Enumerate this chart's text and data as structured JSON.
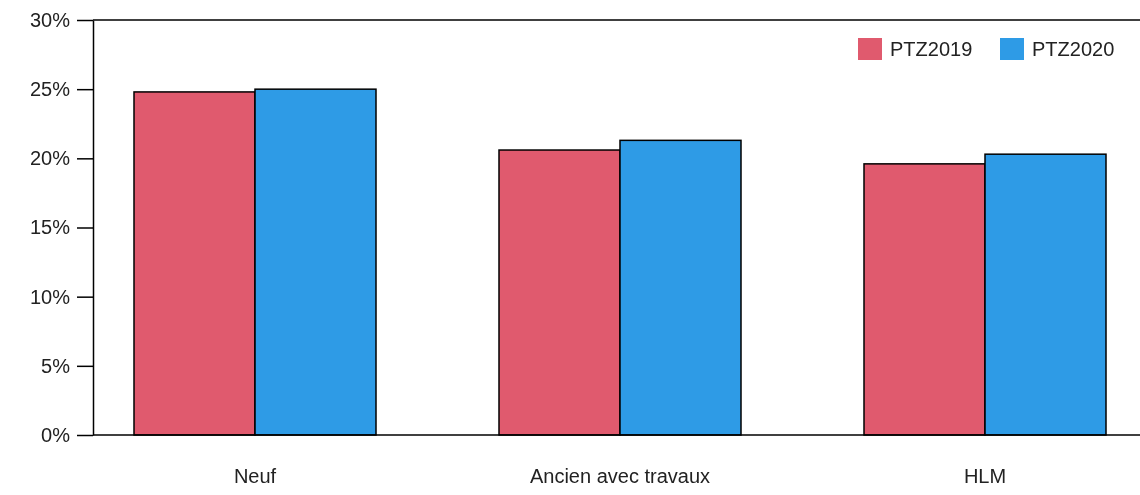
{
  "chart_data": {
    "type": "bar",
    "categories": [
      "Neuf",
      "Ancien avec travaux",
      "HLM"
    ],
    "series": [
      {
        "name": "PTZ2019",
        "color": "#e05a6e",
        "values": [
          24.8,
          20.6,
          19.6
        ]
      },
      {
        "name": "PTZ2020",
        "color": "#2e9be6",
        "values": [
          25.0,
          21.3,
          20.3
        ]
      }
    ],
    "ylim": [
      0,
      30
    ],
    "yticks": [
      {
        "value": 0,
        "label": "0%"
      },
      {
        "value": 5,
        "label": "5%"
      },
      {
        "value": 10,
        "label": "10%"
      },
      {
        "value": 15,
        "label": "15%"
      },
      {
        "value": 20,
        "label": "20%"
      },
      {
        "value": 25,
        "label": "25%"
      },
      {
        "value": 30,
        "label": "30%"
      }
    ],
    "legend": "top right"
  }
}
